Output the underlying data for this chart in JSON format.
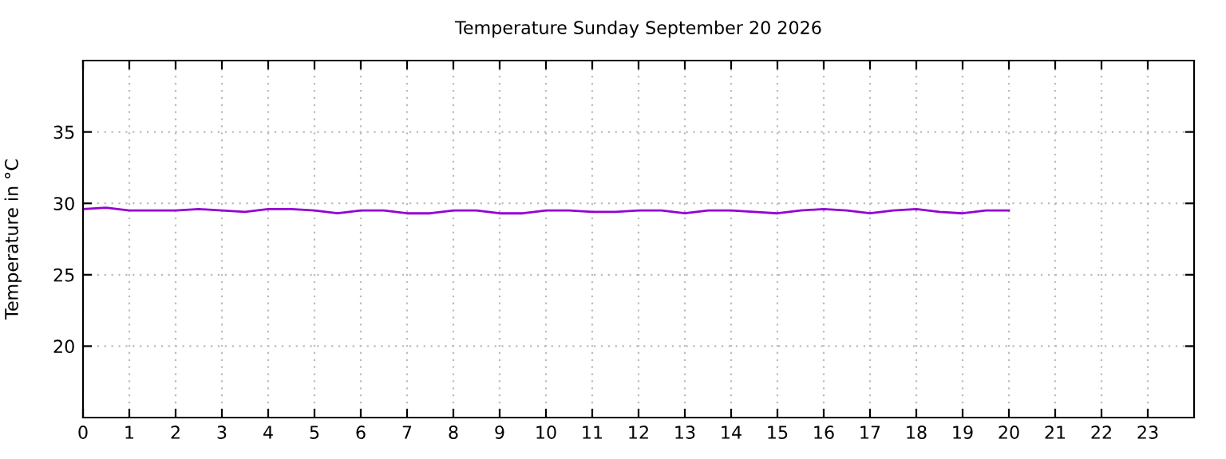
{
  "chart_data": {
    "type": "line",
    "title": "Temperature Sunday September 20 2026",
    "ylabel": "Temperature in °C",
    "x": [
      0,
      0.5,
      1,
      1.5,
      2,
      2.5,
      3,
      3.5,
      4,
      4.5,
      5,
      5.5,
      6,
      6.5,
      7,
      7.5,
      8,
      8.5,
      9,
      9.5,
      10,
      10.5,
      11,
      11.5,
      12,
      12.5,
      13,
      13.5,
      14,
      14.5,
      15,
      15.5,
      16,
      16.5,
      17,
      17.5,
      18,
      18.5,
      19,
      19.5,
      20
    ],
    "series": [
      {
        "color": "#9400d3",
        "values": [
          29.6,
          29.7,
          29.5,
          29.5,
          29.5,
          29.6,
          29.5,
          29.4,
          29.6,
          29.6,
          29.5,
          29.3,
          29.5,
          29.5,
          29.3,
          29.3,
          29.5,
          29.5,
          29.3,
          29.3,
          29.5,
          29.5,
          29.4,
          29.4,
          29.5,
          29.5,
          29.3,
          29.5,
          29.5,
          29.4,
          29.3,
          29.5,
          29.6,
          29.5,
          29.3,
          29.5,
          29.6,
          29.4,
          29.3,
          29.5,
          29.5
        ]
      }
    ],
    "xlim": [
      0,
      24
    ],
    "ylim": [
      15,
      40
    ],
    "xticks": [
      0,
      1,
      2,
      3,
      4,
      5,
      6,
      7,
      8,
      9,
      10,
      11,
      12,
      13,
      14,
      15,
      16,
      17,
      18,
      19,
      20,
      21,
      22,
      23
    ],
    "yticks": [
      20,
      25,
      30,
      35
    ],
    "grid": true,
    "marker": "none",
    "line_style": "solid"
  }
}
